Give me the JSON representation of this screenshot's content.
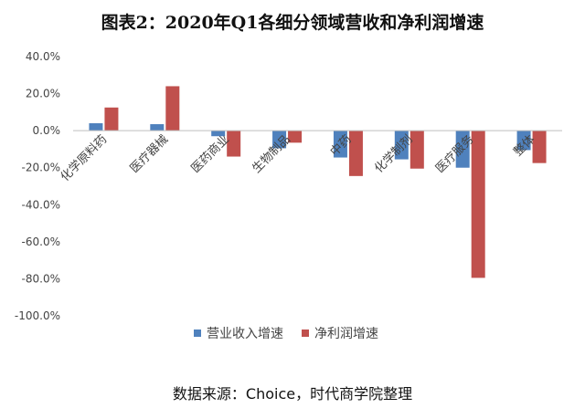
{
  "page": {
    "title": "图表2：2020年Q1各细分领域营收和净利润增速",
    "source": "数据来源：Choice，时代商学院整理"
  },
  "chart_data": {
    "type": "bar",
    "title": "图表2：2020年Q1各细分领域营收和净利润增速",
    "categories": [
      "化学原料药",
      "医疗器械",
      "医药商业",
      "生物制品",
      "中药",
      "化学制剂",
      "医疗服务",
      "整体"
    ],
    "series": [
      {
        "name": "营业收入增速",
        "color": "#4F81BD",
        "values": [
          4.0,
          3.5,
          -3.0,
          -9.5,
          -14.5,
          -15.5,
          -20.0,
          -10.5
        ]
      },
      {
        "name": "净利润增速",
        "color": "#C0504D",
        "values": [
          12.5,
          24.0,
          -14.0,
          -6.5,
          -24.5,
          -20.5,
          -79.5,
          -17.5
        ]
      }
    ],
    "yticks": [
      "40.0%",
      "20.0%",
      "0.0%",
      "-20.0%",
      "-40.0%",
      "-60.0%",
      "-80.0%",
      "-100.0%"
    ],
    "ylim": [
      -100,
      40
    ],
    "unit": "%",
    "legend_position": "bottom",
    "grid": false
  }
}
